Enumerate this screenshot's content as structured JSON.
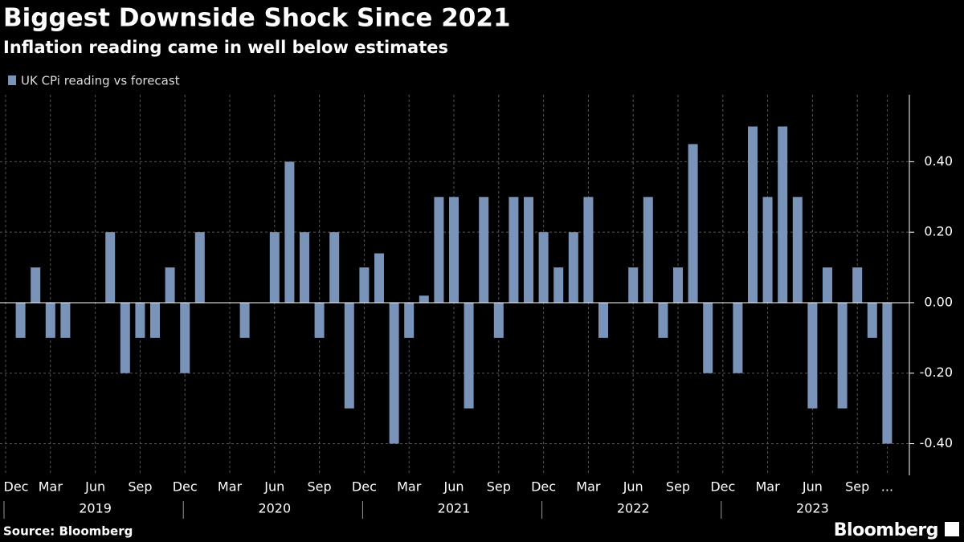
{
  "chart_data": {
    "type": "bar",
    "title": "Biggest Downside Shock Since 2021",
    "subtitle": "Inflation reading came in well below estimates",
    "categories": [
      "Dec",
      null,
      null,
      "Mar",
      null,
      null,
      "Jun",
      null,
      null,
      "Sep",
      null,
      null,
      "Dec",
      null,
      null,
      "Mar",
      null,
      null,
      "Jun",
      null,
      null,
      "Sep",
      null,
      null,
      "Dec",
      null,
      null,
      "Mar",
      null,
      null,
      "Jun",
      null,
      null,
      "Sep",
      null,
      null,
      "Dec",
      null,
      null,
      "Mar",
      null,
      null,
      "Jun",
      null,
      null,
      "Sep",
      null,
      null,
      "Dec",
      null,
      null,
      "Mar",
      null,
      null,
      "Jun",
      null,
      null,
      "Sep",
      null,
      "..."
    ],
    "years": [
      "2019",
      "2020",
      "2021",
      "2022",
      "2023"
    ],
    "series": [
      {
        "name": "UK CPi reading vs forecast",
        "color": "#7a93b9",
        "values": [
          0,
          -0.1,
          0.1,
          -0.1,
          -0.1,
          0,
          0,
          0.2,
          -0.2,
          -0.1,
          -0.1,
          0.1,
          -0.2,
          0.2,
          0,
          0,
          -0.1,
          0,
          0.2,
          0.4,
          0.2,
          -0.1,
          0.2,
          -0.3,
          0.1,
          0.14,
          -0.4,
          -0.1,
          0.02,
          0.3,
          0.3,
          -0.3,
          0.3,
          -0.1,
          0.3,
          0.3,
          0.2,
          0.1,
          0.2,
          0.3,
          -0.1,
          0,
          0.1,
          0.3,
          -0.1,
          0.1,
          0.45,
          -0.2,
          0,
          -0.2,
          0.5,
          0.3,
          0.5,
          0.3,
          -0.3,
          0.1,
          -0.3,
          0.1,
          -0.1,
          -0.4
        ]
      }
    ],
    "ylim": [
      -0.49,
      0.59
    ],
    "yticks": [
      {
        "value": -0.4,
        "label": "-0.40"
      },
      {
        "value": -0.2,
        "label": "-0.20"
      },
      {
        "value": 0,
        "label": "0.00"
      },
      {
        "value": 0.2,
        "label": "0.20"
      },
      {
        "value": 0.4,
        "label": "0.40"
      }
    ],
    "grid": true,
    "source": "Source: Bloomberg",
    "logo": "Bloomberg"
  }
}
